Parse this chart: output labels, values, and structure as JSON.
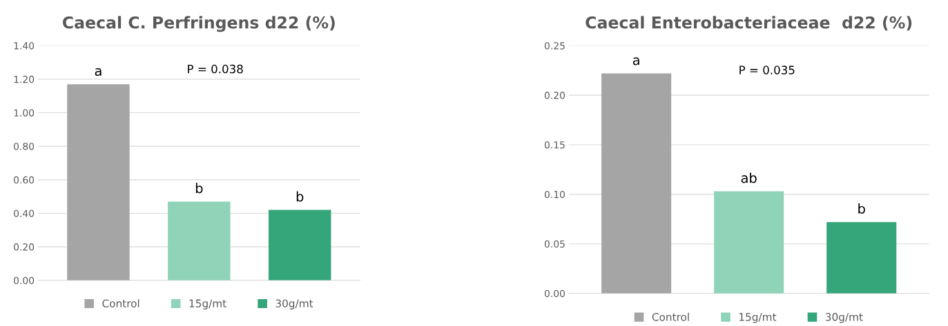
{
  "chart_data": [
    {
      "type": "bar",
      "title": "Caecal C. Perfringens d22 (%)",
      "categories": [
        null,
        null,
        null
      ],
      "stacked": true,
      "series": [
        {
          "name": "Control",
          "color": "#a5a5a5",
          "values": [
            1.17,
            null,
            null
          ],
          "value_labels": [
            "a",
            null,
            null
          ]
        },
        {
          "name": "15g/mt",
          "color": "#8fd3b8",
          "values": [
            null,
            0.47,
            null
          ],
          "value_labels": [
            null,
            "b",
            null
          ]
        },
        {
          "name": "30g/mt",
          "color": "#35a57a",
          "values": [
            null,
            null,
            0.42
          ],
          "value_labels": [
            null,
            null,
            "b"
          ]
        }
      ],
      "ylim": [
        0,
        1.4
      ],
      "yticks": [
        {
          "value": 0,
          "label": "0.00"
        },
        {
          "value": 0.2,
          "label": "0.20"
        },
        {
          "value": 0.4,
          "label": "0.40"
        },
        {
          "value": 0.6,
          "label": "0.60"
        },
        {
          "value": 0.8,
          "label": "0.80"
        },
        {
          "value": 1.0,
          "label": "1.00"
        },
        {
          "value": 1.2,
          "label": "1.20"
        },
        {
          "value": 1.4,
          "label": "1.40"
        }
      ],
      "annotations": [
        "P = 0.038"
      ],
      "grid": "y",
      "legend": "bottom"
    },
    {
      "type": "bar",
      "title": "Caecal Enterobacteriaceae  d22 (%)",
      "categories": [
        null,
        null,
        null
      ],
      "stacked": true,
      "series": [
        {
          "name": "Control",
          "color": "#a5a5a5",
          "values": [
            0.222,
            null,
            null
          ],
          "value_labels": [
            "a",
            null,
            null
          ]
        },
        {
          "name": "15g/mt",
          "color": "#8fd3b8",
          "values": [
            null,
            0.103,
            null
          ],
          "value_labels": [
            null,
            "ab",
            null
          ]
        },
        {
          "name": "30g/mt",
          "color": "#35a57a",
          "values": [
            null,
            null,
            0.072
          ],
          "value_labels": [
            null,
            null,
            "b"
          ]
        }
      ],
      "ylim": [
        0,
        0.25
      ],
      "yticks": [
        {
          "value": 0,
          "label": "0.00"
        },
        {
          "value": 0.05,
          "label": "0.05"
        },
        {
          "value": 0.1,
          "label": "0.10"
        },
        {
          "value": 0.15,
          "label": "0.15"
        },
        {
          "value": 0.2,
          "label": "0.20"
        },
        {
          "value": 0.25,
          "label": "0.25"
        }
      ],
      "annotations": [
        "P = 0.035"
      ],
      "grid": "y",
      "legend": "bottom"
    }
  ]
}
